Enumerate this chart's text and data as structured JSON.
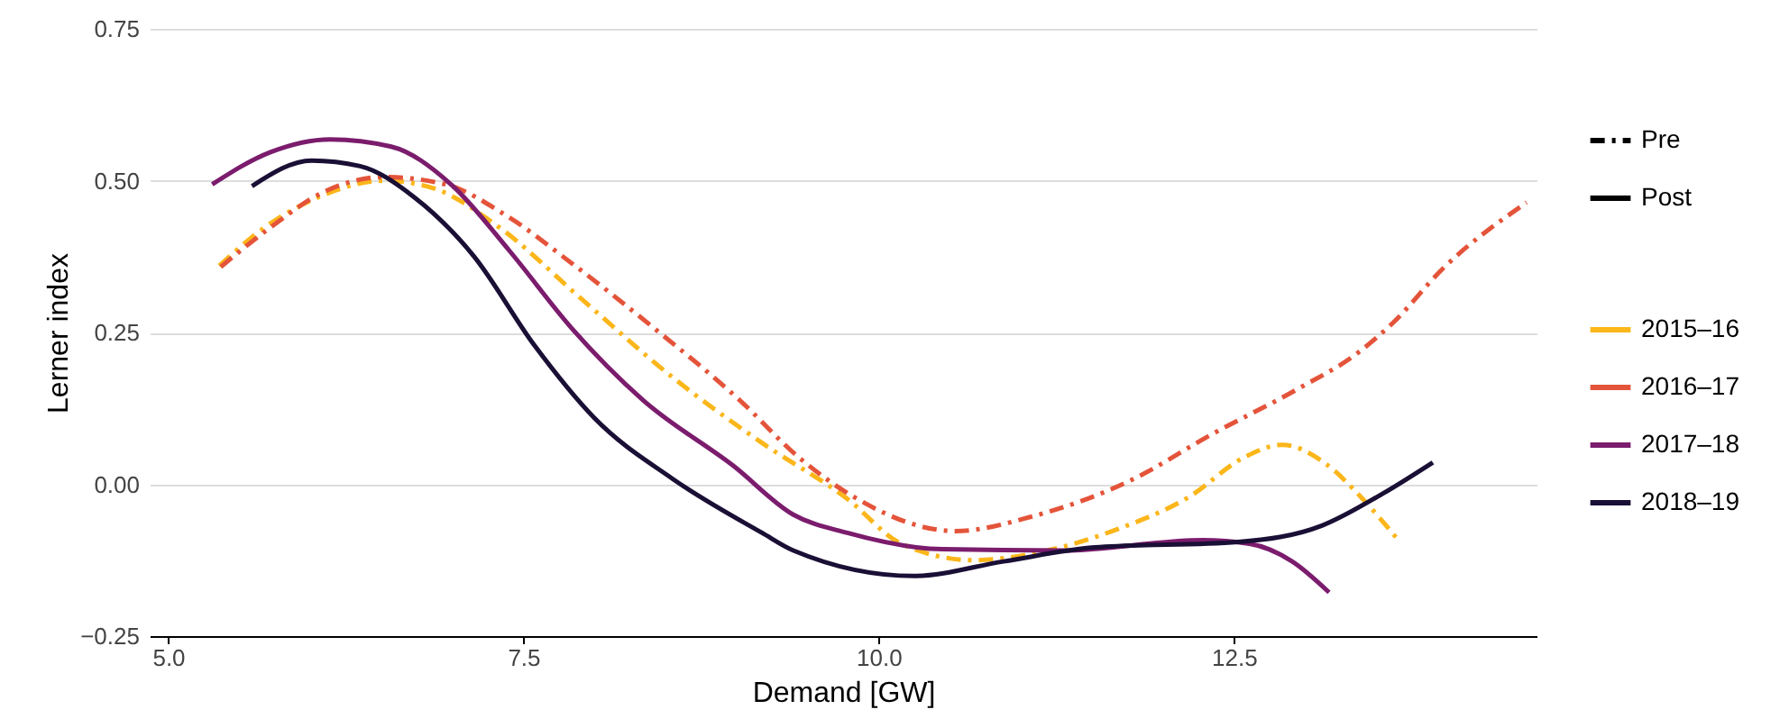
{
  "chart_data": {
    "type": "line",
    "xlabel": "Demand [GW]",
    "ylabel": "Lerner index",
    "xlim": [
      4.87,
      14.63
    ],
    "ylim": [
      -0.25,
      0.75
    ],
    "xticks": [
      {
        "value": 5,
        "label": "5.0"
      },
      {
        "value": 7.5,
        "label": "7.5"
      },
      {
        "value": 10,
        "label": "10.0"
      },
      {
        "value": 12.5,
        "label": "12.5"
      }
    ],
    "yticks": [
      {
        "value": -0.25,
        "label": "−0.25"
      },
      {
        "value": 0,
        "label": "0.00"
      },
      {
        "value": 0.25,
        "label": "0.25"
      },
      {
        "value": 0.5,
        "label": "0.50"
      },
      {
        "value": 0.75,
        "label": "0.75"
      }
    ],
    "grid": "y",
    "legend": "right",
    "annotations": [
      "Pre",
      "Post"
    ],
    "series": [
      {
        "name": "2015–16",
        "color": "#fbb61a",
        "line_style": "dashed",
        "x": [
          5.36,
          5.68,
          6.06,
          6.52,
          6.86,
          7.33,
          7.91,
          8.54,
          9.18,
          9.78,
          10.16,
          10.67,
          11.17,
          11.68,
          12.19,
          12.57,
          12.84,
          13.14,
          13.39,
          13.65
        ],
        "values": [
          0.36,
          0.423,
          0.473,
          0.5,
          0.488,
          0.423,
          0.305,
          0.178,
          0.068,
          -0.024,
          -0.098,
          -0.125,
          -0.11,
          -0.074,
          -0.02,
          0.044,
          0.065,
          0.035,
          -0.02,
          -0.09
        ]
      },
      {
        "name": "2016–17",
        "color": "#e4543a",
        "line_style": "dashed",
        "x": [
          5.37,
          5.72,
          6.1,
          6.52,
          6.95,
          7.37,
          7.84,
          8.42,
          9.02,
          9.44,
          9.82,
          10.54,
          11.08,
          11.77,
          12.35,
          12.95,
          13.37,
          13.62,
          13.97,
          14.56
        ],
        "values": [
          0.358,
          0.423,
          0.482,
          0.506,
          0.494,
          0.444,
          0.364,
          0.257,
          0.139,
          0.044,
          -0.02,
          -0.077,
          -0.053,
          0.006,
          0.083,
          0.157,
          0.216,
          0.266,
          0.355,
          0.464
        ]
      },
      {
        "name": "2017–18",
        "color": "#7b1c6d",
        "line_style": "solid",
        "x": [
          5.31,
          5.72,
          6.14,
          6.57,
          6.99,
          7.4,
          7.84,
          8.34,
          8.98,
          9.4,
          9.78,
          10.45,
          11.3,
          12.28,
          12.61,
          12.91,
          13.17
        ],
        "values": [
          0.494,
          0.547,
          0.568,
          0.556,
          0.494,
          0.385,
          0.257,
          0.139,
          0.03,
          -0.05,
          -0.08,
          -0.107,
          -0.109,
          -0.092,
          -0.098,
          -0.127,
          -0.178
        ]
      },
      {
        "name": "2018–19",
        "color": "#1a0f35",
        "line_style": "solid",
        "x": [
          5.59,
          6.01,
          6.35,
          6.73,
          7.15,
          7.58,
          8.0,
          8.55,
          9.18,
          9.4,
          10.25,
          10.88,
          11.52,
          12.53,
          13.12,
          13.55,
          13.9
        ],
        "values": [
          0.491,
          0.533,
          0.524,
          0.473,
          0.376,
          0.228,
          0.109,
          0.009,
          -0.08,
          -0.109,
          -0.151,
          -0.127,
          -0.104,
          -0.095,
          -0.068,
          -0.015,
          0.036
        ]
      }
    ]
  }
}
